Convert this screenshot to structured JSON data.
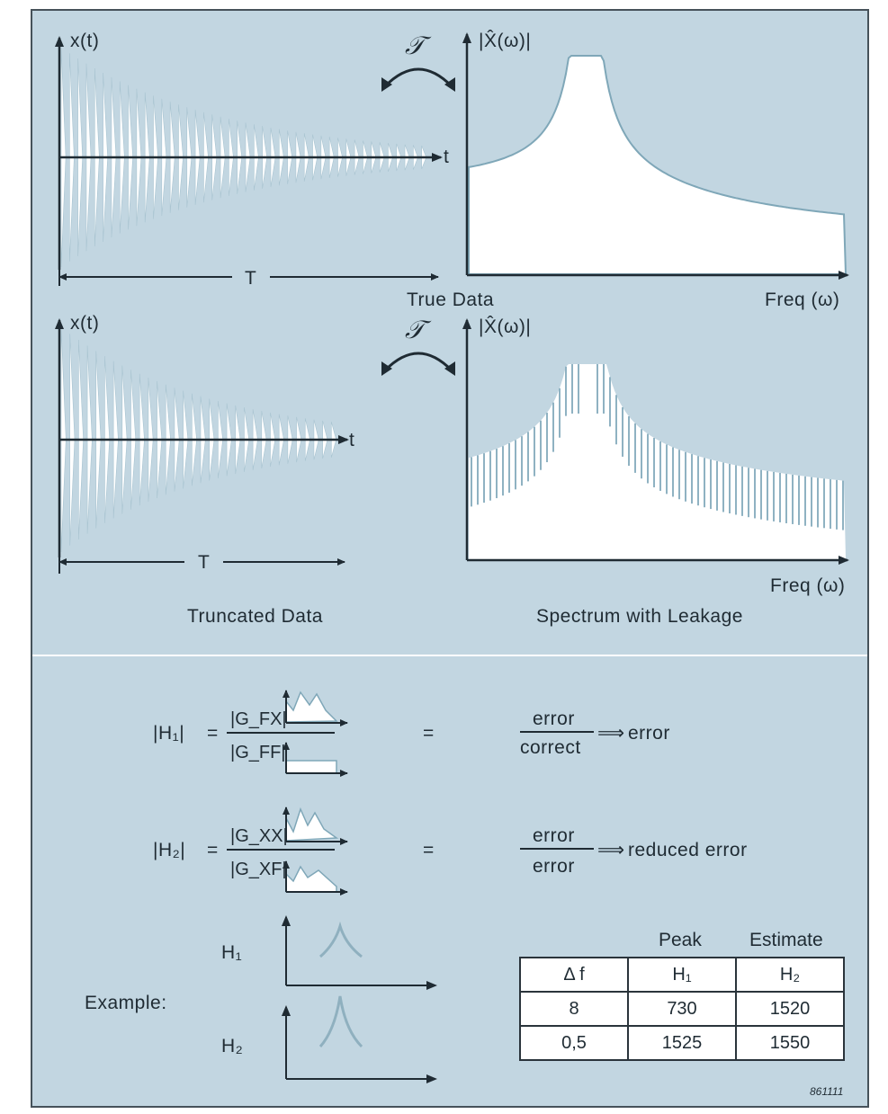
{
  "top": {
    "transform_symbol": "𝒯",
    "x_label": "x(t)",
    "t_label": "t",
    "T_label": "T",
    "spectrum_label": "|X̂(ω)|",
    "true_data_caption": "True Data",
    "freq_label": "Freq (ω)",
    "truncated_caption": "Truncated Data",
    "leakage_caption": "Spectrum with Leakage"
  },
  "equations": {
    "h1_label": "|H₁|",
    "h1_numerator": "|G_FX|",
    "h1_denominator": "|G_FF|",
    "h1_result_num": "error",
    "h1_result_den": "correct",
    "h1_result": "error",
    "h2_label": "|H₂|",
    "h2_numerator": "|G_XX|",
    "h2_denominator": "|G_XF|",
    "h2_result_num": "error",
    "h2_result_den": "error",
    "h2_result": "reduced error",
    "equals": "="
  },
  "example": {
    "label": "Example:",
    "h1": "H₁",
    "h2": "H₂"
  },
  "table": {
    "header_peak": "Peak",
    "header_estimate": "Estimate",
    "col_labels": [
      "Δ f",
      "H₁",
      "H₂"
    ],
    "rows": [
      [
        "8",
        "730",
        "1520"
      ],
      [
        "0,5",
        "1525",
        "1550"
      ]
    ]
  },
  "figure_number": "861111",
  "colors": {
    "panel": "#c2d6e1",
    "signal": "#ffffff",
    "spectrum_edge": "#7fa7b8",
    "axis": "#1f2b33"
  }
}
